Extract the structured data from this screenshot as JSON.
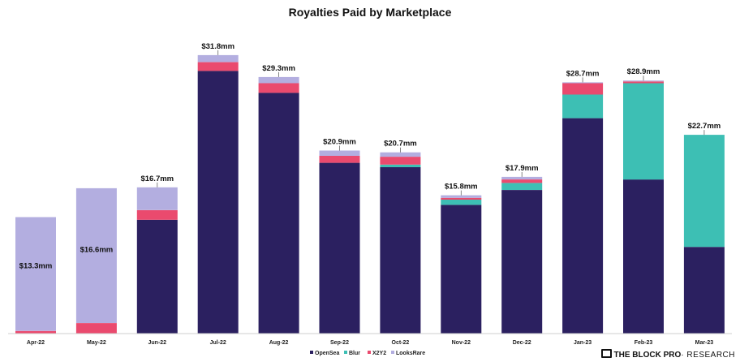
{
  "colors": {
    "OpenSea": "#2b2060",
    "Blur": "#3dbfb4",
    "X2Y2": "#ea4a6e",
    "LooksRare": "#b3aee0"
  },
  "brand": {
    "part1": "THE BLOCK",
    "part2": "PRO",
    "part3": "· RESEARCH",
    "icon": "block-logo-icon"
  },
  "chart_data": {
    "type": "bar",
    "stacked": true,
    "title": "Royalties Paid by Marketplace",
    "xlabel": "",
    "ylabel": "",
    "ylim": [
      0,
      33
    ],
    "grid": false,
    "legend_position": "bottom-center",
    "categories": [
      "Apr-22",
      "May-22",
      "Jun-22",
      "Jul-22",
      "Aug-22",
      "Sep-22",
      "Oct-22",
      "Nov-22",
      "Dec-22",
      "Jan-23",
      "Feb-23",
      "Mar-23"
    ],
    "totals_labels": [
      "$13.3mm",
      "$16.6mm",
      "$16.7mm",
      "$31.8mm",
      "$29.3mm",
      "$20.9mm",
      "$20.7mm",
      "$15.8mm",
      "$17.9mm",
      "$28.7mm",
      "$28.9mm",
      "$22.7mm"
    ],
    "series": [
      {
        "name": "OpenSea",
        "values": [
          0,
          0,
          13.0,
          30.0,
          27.5,
          19.5,
          19.0,
          14.7,
          16.4,
          24.6,
          17.6,
          9.9
        ]
      },
      {
        "name": "Blur",
        "values": [
          0,
          0,
          0,
          0,
          0,
          0,
          0.3,
          0.6,
          0.8,
          2.7,
          11.0,
          12.8
        ]
      },
      {
        "name": "X2Y2",
        "values": [
          0.3,
          1.2,
          1.1,
          1.0,
          1.1,
          0.8,
          0.9,
          0.2,
          0.4,
          1.3,
          0.2,
          0
        ]
      },
      {
        "name": "LooksRare",
        "values": [
          13.0,
          15.4,
          2.6,
          0.8,
          0.7,
          0.6,
          0.5,
          0.3,
          0.3,
          0.1,
          0.1,
          0
        ]
      }
    ]
  }
}
